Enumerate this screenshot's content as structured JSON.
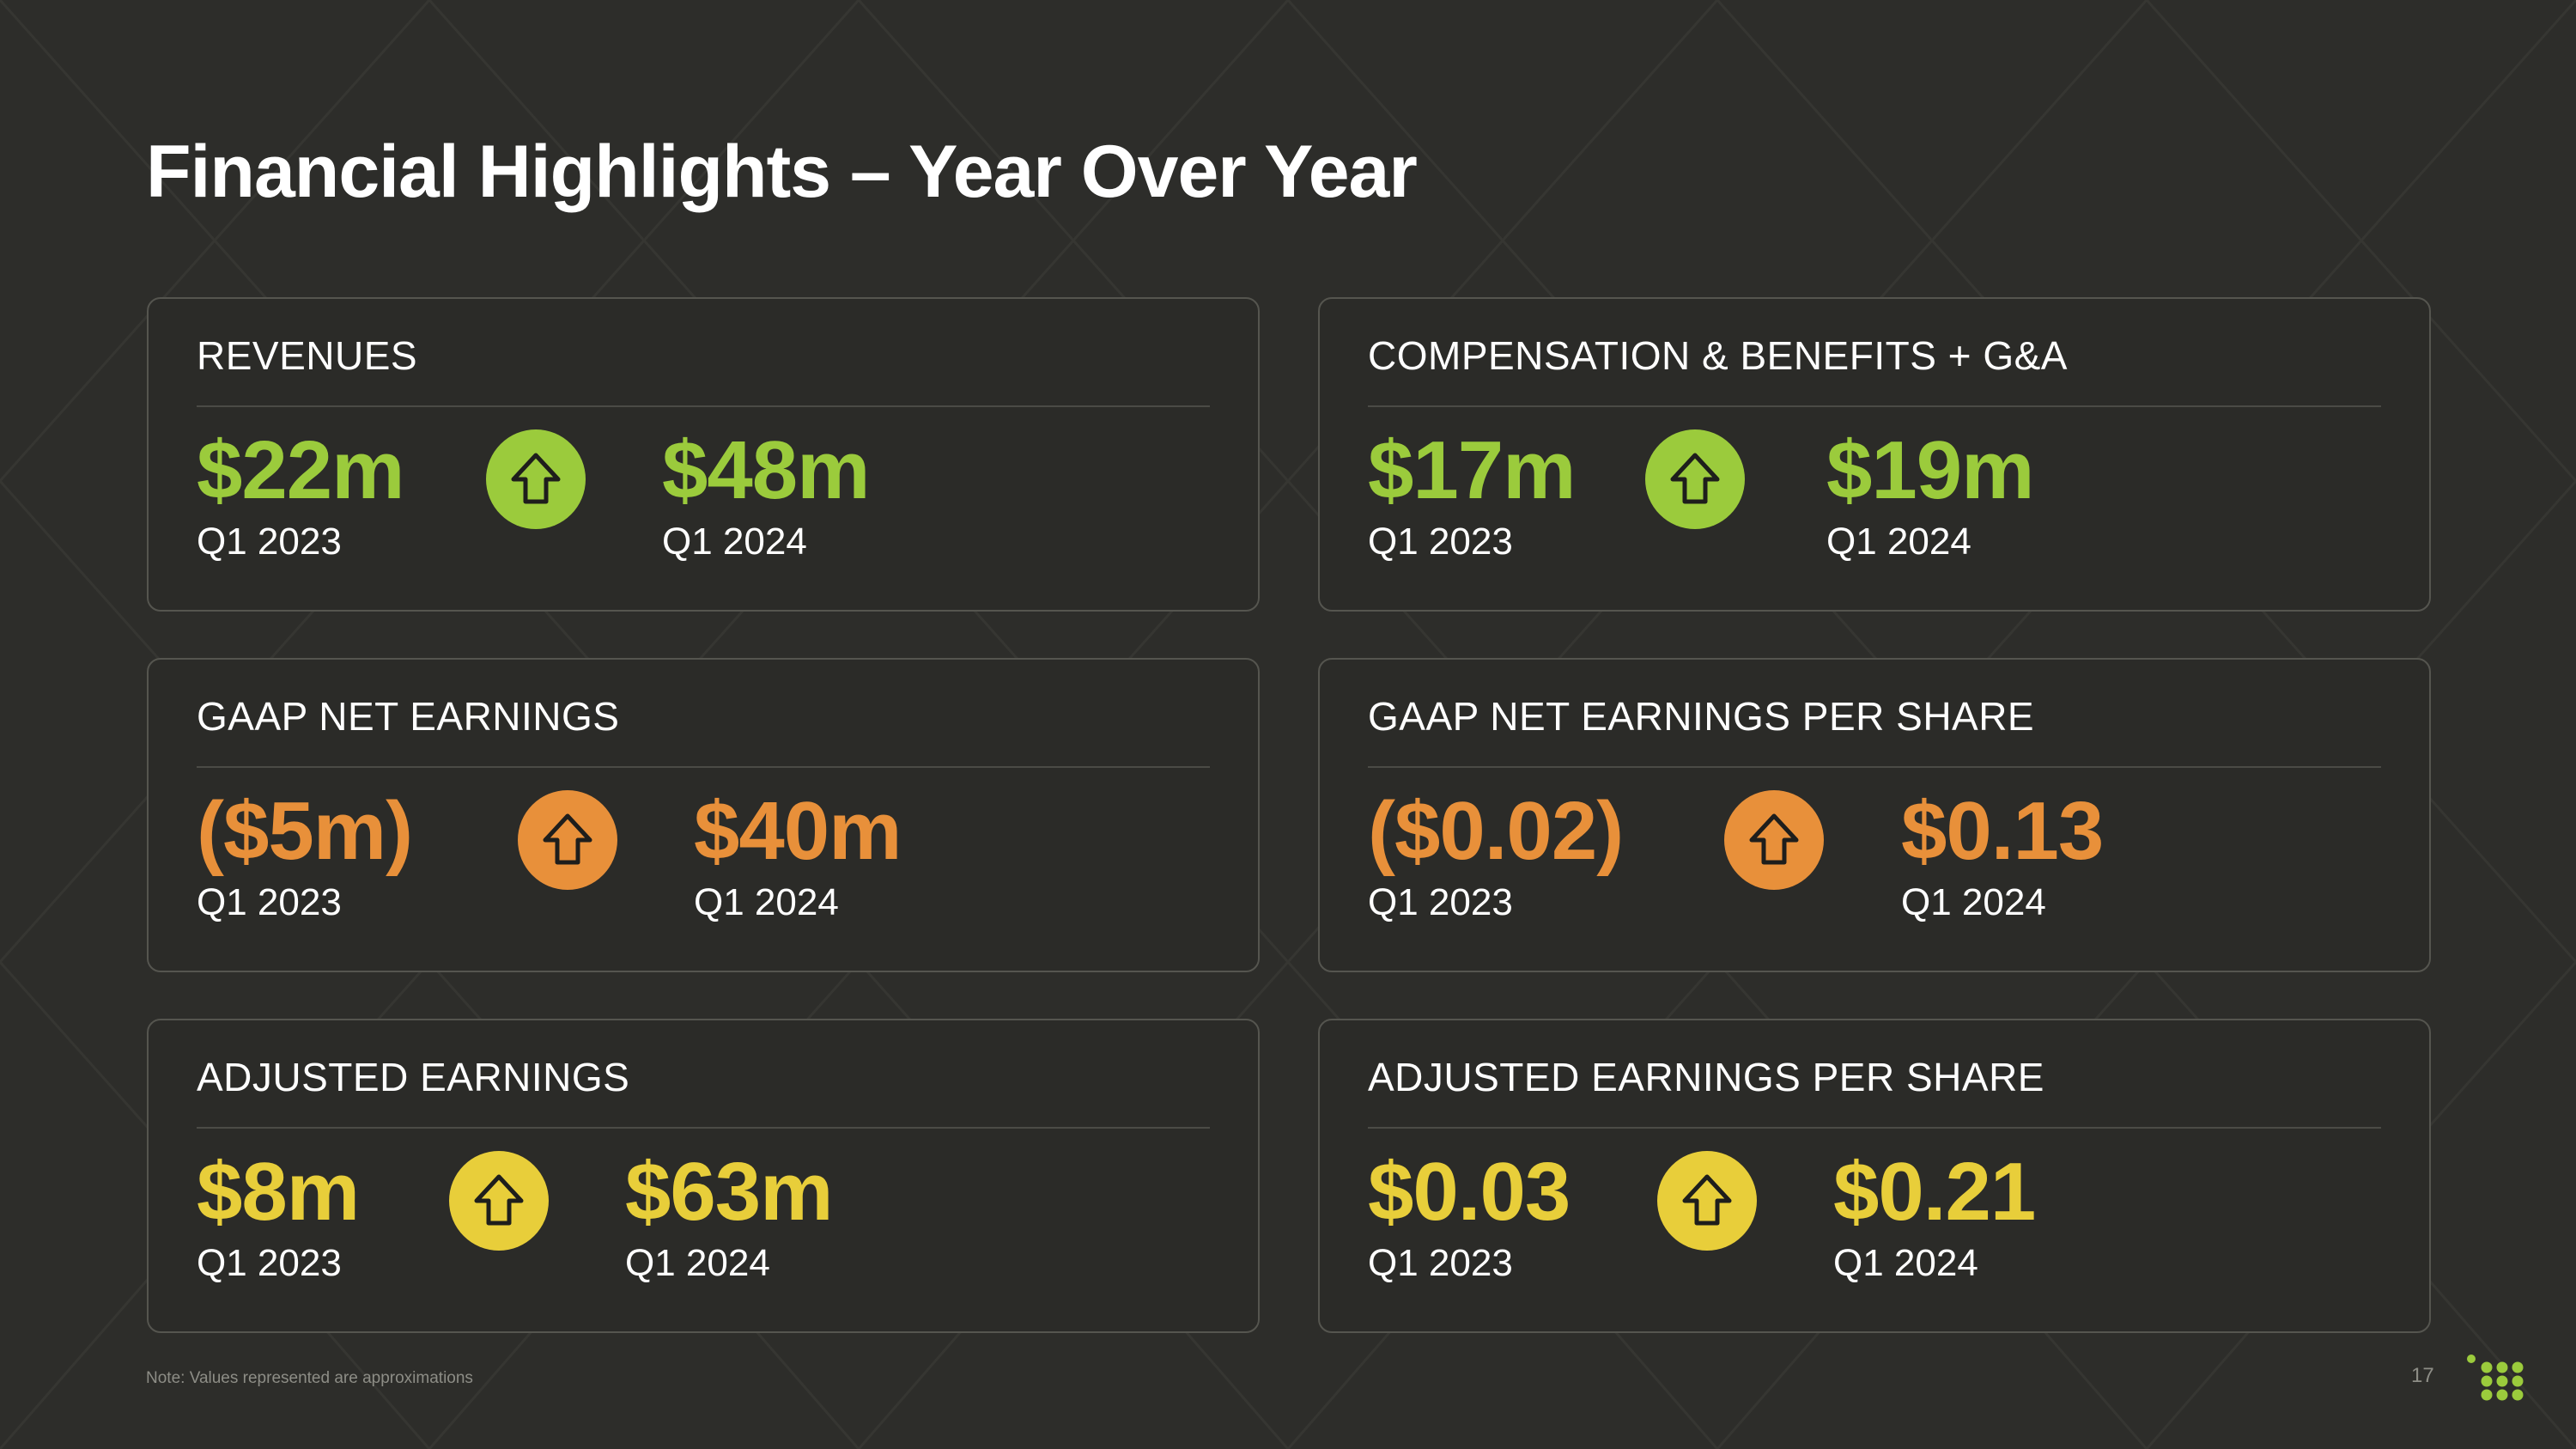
{
  "title": "Financial Highlights – Year Over Year",
  "colors": {
    "green": "#9bcb3c",
    "orange": "#e8903a",
    "yellow": "#e8ce3a",
    "background": "#2d2d2a"
  },
  "cards": [
    {
      "label": "REVENUES",
      "before_value": "$22m",
      "before_period": "Q1 2023",
      "after_value": "$48m",
      "after_period": "Q1 2024",
      "trend_icon": "arrow-up-icon"
    },
    {
      "label": "COMPENSATION & BENEFITS + G&A",
      "before_value": "$17m",
      "before_period": "Q1 2023",
      "after_value": "$19m",
      "after_period": "Q1 2024",
      "trend_icon": "arrow-up-icon"
    },
    {
      "label": "GAAP NET EARNINGS",
      "before_value": "($5m)",
      "before_period": "Q1 2023",
      "after_value": "$40m",
      "after_period": "Q1 2024",
      "trend_icon": "arrow-up-icon"
    },
    {
      "label": "GAAP NET EARNINGS PER SHARE",
      "before_value": "($0.02)",
      "before_period": "Q1 2023",
      "after_value": "$0.13",
      "after_period": "Q1 2024",
      "trend_icon": "arrow-up-icon"
    },
    {
      "label": "ADJUSTED EARNINGS",
      "before_value": "$8m",
      "before_period": "Q1 2023",
      "after_value": "$63m",
      "after_period": "Q1 2024",
      "trend_icon": "arrow-up-icon"
    },
    {
      "label": "ADJUSTED EARNINGS PER SHARE",
      "before_value": "$0.03",
      "before_period": "Q1 2023",
      "after_value": "$0.21",
      "after_period": "Q1 2024",
      "trend_icon": "arrow-up-icon"
    }
  ],
  "footer": {
    "note": "Note: Values represented are approximations",
    "page_number": "17",
    "logo_icon": "dot-grid-logo-icon"
  }
}
